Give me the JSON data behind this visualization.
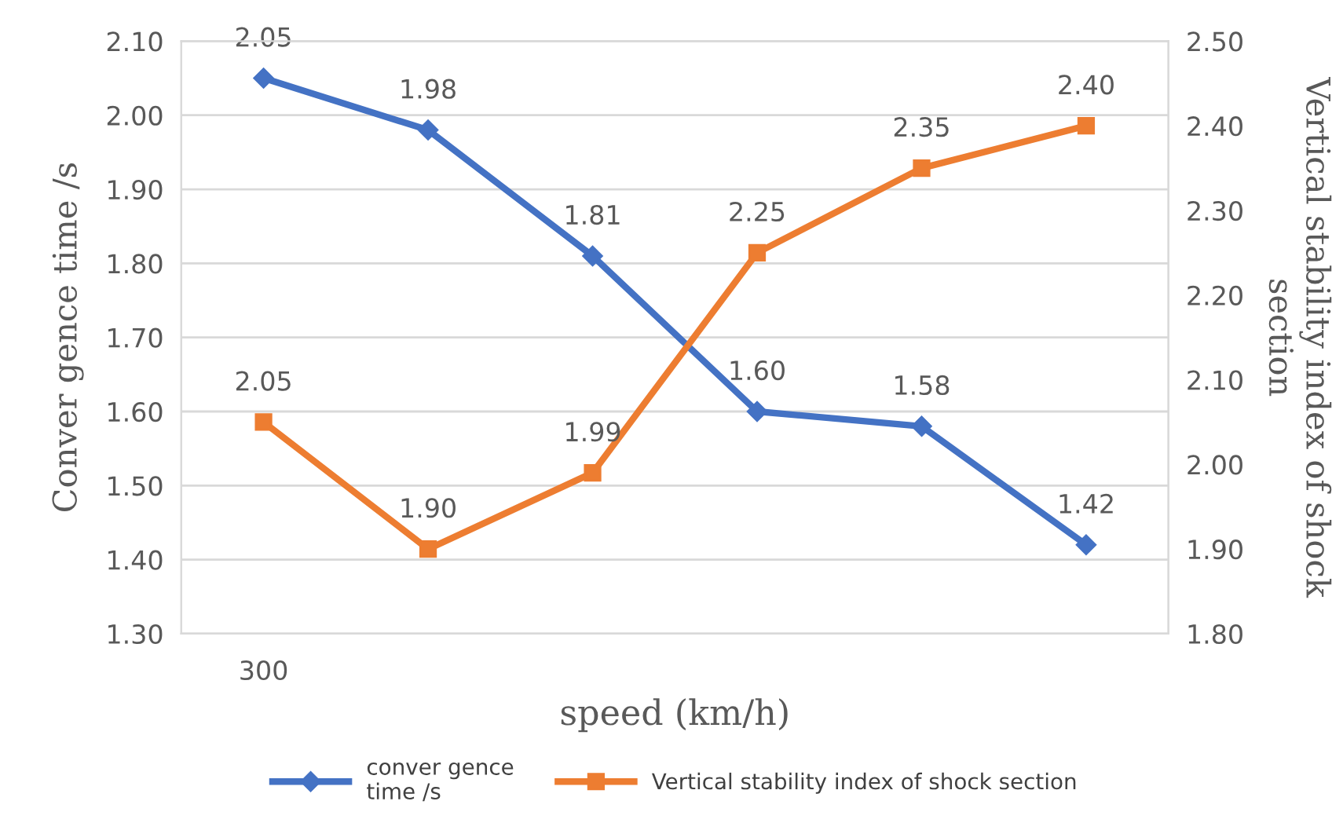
{
  "chart_data": {
    "type": "line",
    "xlabel": "speed (km/h)",
    "ylabel": "Conver gence time /s",
    "y2label": "Vertical stability index of shock\nsection",
    "categories": [
      "300",
      null,
      null,
      null,
      null,
      null
    ],
    "series": [
      {
        "name": "conver gence\ntime /s",
        "color": "#4472c4",
        "values": [
          2.05,
          1.98,
          1.81,
          1.6,
          1.58,
          1.42
        ],
        "value_labels": [
          "2.05",
          "1.98",
          "1.81",
          "1.60",
          "1.58",
          "1.42"
        ],
        "marker": "diamond"
      },
      {
        "name": "Vertical stability index of shock section",
        "color": "#ed7d31",
        "values": [
          2.05,
          1.9,
          1.99,
          2.25,
          2.35,
          2.4
        ],
        "value_labels": [
          "2.05",
          "1.90",
          "1.99",
          "2.25",
          "2.35",
          "2.40"
        ],
        "axis": "y2",
        "marker": "square"
      }
    ],
    "ylim": [
      1.3,
      2.1
    ],
    "yticks": [
      {
        "value": 1.3,
        "label": "1.30"
      },
      {
        "value": 1.4,
        "label": "1.40"
      },
      {
        "value": 1.5,
        "label": "1.50"
      },
      {
        "value": 1.6,
        "label": "1.60"
      },
      {
        "value": 1.7,
        "label": "1.70"
      },
      {
        "value": 1.8,
        "label": "1.80"
      },
      {
        "value": 1.9,
        "label": "1.90"
      },
      {
        "value": 2.0,
        "label": "2.00"
      },
      {
        "value": 2.1,
        "label": "2.10"
      }
    ],
    "y2lim": [
      1.8,
      2.5
    ],
    "y2ticks": [
      {
        "value": 1.8,
        "label": "1.80"
      },
      {
        "value": 1.9,
        "label": "1.90"
      },
      {
        "value": 2.0,
        "label": "2.00"
      },
      {
        "value": 2.1,
        "label": "2.10"
      },
      {
        "value": 2.2,
        "label": "2.20"
      },
      {
        "value": 2.3,
        "label": "2.30"
      },
      {
        "value": 2.4,
        "label": "2.40"
      },
      {
        "value": 2.5,
        "label": "2.50"
      }
    ],
    "grid": "y",
    "legend": "bottom",
    "line_style": "solid"
  }
}
